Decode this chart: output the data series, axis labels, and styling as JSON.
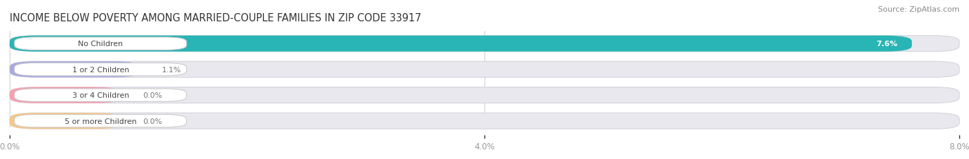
{
  "title": "INCOME BELOW POVERTY AMONG MARRIED-COUPLE FAMILIES IN ZIP CODE 33917",
  "source": "Source: ZipAtlas.com",
  "categories": [
    "No Children",
    "1 or 2 Children",
    "3 or 4 Children",
    "5 or more Children"
  ],
  "values": [
    7.6,
    1.1,
    0.0,
    0.0
  ],
  "bar_colors": [
    "#29b5b5",
    "#aaaade",
    "#f5a0b0",
    "#f5c88a"
  ],
  "background_color": "#ffffff",
  "bar_bg_color": "#e8e8ee",
  "xlim_data": [
    0,
    8.0
  ],
  "xticks": [
    0.0,
    4.0,
    8.0
  ],
  "xticklabels": [
    "0.0%",
    "4.0%",
    "8.0%"
  ],
  "title_fontsize": 10.5,
  "source_fontsize": 8,
  "label_fontsize": 8,
  "value_fontsize": 8,
  "tick_fontsize": 8.5
}
